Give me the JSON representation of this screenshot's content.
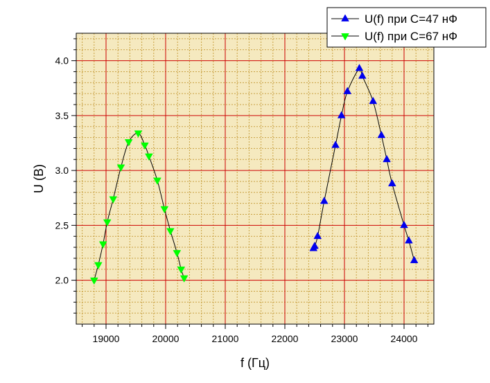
{
  "chart_data": {
    "type": "scatter",
    "title": "",
    "xlabel": "f (Гц)",
    "ylabel": "U (В)",
    "xlim": [
      18500,
      24500
    ],
    "ylim": [
      1.6,
      4.25
    ],
    "xticks": [
      19000,
      20000,
      21000,
      22000,
      23000,
      24000
    ],
    "yticks": [
      2.0,
      2.5,
      3.0,
      3.5,
      4.0
    ],
    "xtick_labels": [
      "19000",
      "20000",
      "21000",
      "22000",
      "23000",
      "24000"
    ],
    "ytick_labels": [
      "2.0",
      "2.5",
      "3.0",
      "3.5",
      "4.0"
    ],
    "grid": true,
    "legend_position": "top-right",
    "colors": {
      "plot_background": "#f5e9bf",
      "major_grid": "#cc0000",
      "minor_grid": "#c8a040",
      "curve": "#000000"
    },
    "series": [
      {
        "name": "U(f) при С=47 нФ",
        "marker": "triangle-up",
        "color": "#0000ee",
        "x": [
          22480,
          22500,
          22550,
          22660,
          22850,
          22950,
          23050,
          23250,
          23300,
          23480,
          23620,
          23710,
          23800,
          24000,
          24080,
          24170
        ],
        "y": [
          2.29,
          2.31,
          2.4,
          2.72,
          3.23,
          3.5,
          3.72,
          3.93,
          3.86,
          3.63,
          3.32,
          3.1,
          2.88,
          2.5,
          2.36,
          2.18
        ]
      },
      {
        "name": "U(f) при С=67 нФ",
        "marker": "triangle-down",
        "color": "#00ff00",
        "x": [
          18800,
          18870,
          18950,
          19020,
          19120,
          19250,
          19380,
          19540,
          19650,
          19720,
          19860,
          19980,
          20080,
          20190,
          20260,
          20310
        ],
        "y": [
          2.0,
          2.14,
          2.33,
          2.53,
          2.74,
          3.03,
          3.26,
          3.34,
          3.23,
          3.13,
          2.91,
          2.65,
          2.45,
          2.25,
          2.1,
          2.02
        ]
      }
    ]
  }
}
